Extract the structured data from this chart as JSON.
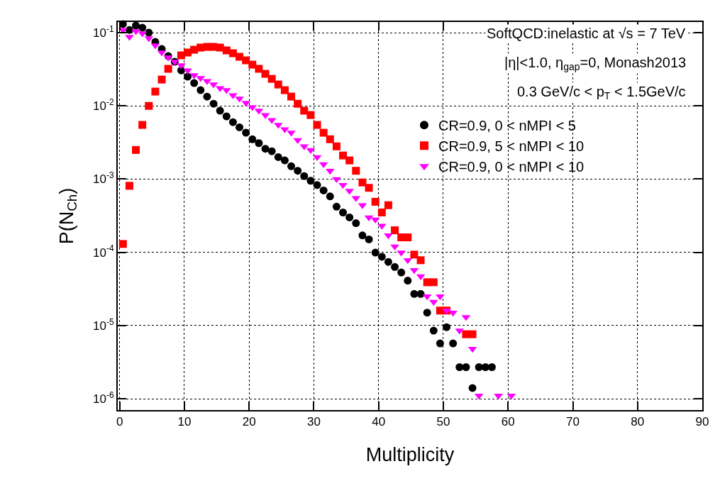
{
  "chart_data": {
    "type": "scatter",
    "xlabel": "Multiplicity",
    "ylabel": "P(N$_{Ch}$)",
    "annotations": [
      "SoftQCD:inelastic at √s = 7 TeV",
      "|η|<1.0, η$_{gap}$=0, Monash2013",
      "0.3 GeV/c < p$_{T}$ < 1.5GeV/c"
    ],
    "x": [
      0.5,
      1.5,
      2.5,
      3.5,
      4.5,
      5.5,
      6.5,
      7.5,
      8.5,
      9.5,
      10.5,
      11.5,
      12.5,
      13.5,
      14.5,
      15.5,
      16.5,
      17.5,
      18.5,
      19.5,
      20.5,
      21.5,
      22.5,
      23.5,
      24.5,
      25.5,
      26.5,
      27.5,
      28.5,
      29.5,
      30.5,
      31.5,
      32.5,
      33.5,
      34.5,
      35.5,
      36.5,
      37.5,
      38.5,
      39.5,
      40.5,
      41.5,
      42.5,
      43.5,
      44.5,
      45.5,
      46.5,
      47.5,
      48.5,
      49.5,
      50.5,
      51.5,
      52.5,
      53.5,
      54.5,
      55.5,
      56.5,
      57.5,
      58.5,
      59.5,
      60.5
    ],
    "series": [
      {
        "name": "CR=0.9, 0 < nMPI < 5",
        "color": "#000000",
        "marker": "circle",
        "values": [
          0.131,
          0.109,
          0.125,
          0.117,
          0.1,
          0.0748,
          0.0598,
          0.0479,
          0.0401,
          0.0306,
          0.0251,
          0.0205,
          0.0164,
          0.0134,
          0.0107,
          0.0086,
          0.0072,
          0.006,
          0.0051,
          0.0043,
          0.0035,
          0.0031,
          0.0026,
          0.0024,
          0.002,
          0.0018,
          0.0015,
          0.0013,
          0.0011,
          0.00095,
          0.00083,
          0.0007,
          0.00058,
          0.00042,
          0.00035,
          0.0003,
          0.00025,
          0.00017,
          0.00015,
          9.9e-05,
          8.7e-05,
          7.4e-05,
          6.3e-05,
          5.3e-05,
          4.1e-05,
          2.7e-05,
          2.7e-05,
          1.5e-05,
          8.5e-06,
          5.7e-06,
          9.5e-06,
          5.7e-06,
          2.7e-06,
          2.7e-06,
          1.4e-06,
          2.7e-06,
          2.7e-06,
          2.7e-06,
          null,
          null,
          null
        ]
      },
      {
        "name": "CR=0.9, 5 < nMPI < 10",
        "color": "#ff0000",
        "marker": "square",
        "values": [
          0.00013,
          0.00081,
          0.0025,
          0.0055,
          0.01,
          0.0157,
          0.0229,
          0.0321,
          null,
          0.049,
          0.0536,
          0.0585,
          0.0626,
          0.064,
          0.064,
          0.0626,
          0.0573,
          0.0524,
          0.0469,
          0.0419,
          0.0366,
          0.0321,
          0.0274,
          0.0234,
          0.0196,
          0.0164,
          0.0134,
          0.0107,
          0.0086,
          0.0075,
          0.0055,
          0.0043,
          0.0035,
          0.0028,
          0.0021,
          0.0018,
          0.0013,
          0.0009,
          0.00076,
          0.00049,
          0.00035,
          0.00044,
          0.0002,
          0.00016,
          0.00016,
          9.3e-05,
          7.8e-05,
          3.9e-05,
          3.9e-05,
          1.6e-05,
          1.6e-05,
          null,
          null,
          7.6e-06,
          7.6e-06,
          null,
          null,
          null,
          null,
          null,
          null
        ]
      },
      {
        "name": "CR=0.9, 0 < nMPI < 10",
        "color": "#ff00ff",
        "marker": "triangle",
        "values": [
          0.109,
          0.0875,
          0.105,
          0.098,
          0.0837,
          0.067,
          0.0536,
          0.0458,
          0.0401,
          0.0358,
          0.0306,
          0.0262,
          0.024,
          0.0219,
          0.0196,
          0.0175,
          0.0164,
          0.014,
          0.0126,
          0.011,
          0.0096,
          0.0086,
          0.0075,
          0.0064,
          0.0055,
          0.0048,
          0.0043,
          0.0034,
          0.0028,
          0.0025,
          0.002,
          0.0016,
          0.0013,
          0.001,
          0.00083,
          0.00069,
          0.00055,
          0.00044,
          0.0003,
          0.00028,
          0.00023,
          0.00017,
          0.00012,
          9.9e-05,
          7.8e-05,
          5.7e-05,
          4.7e-05,
          2.5e-05,
          2.1e-05,
          2.5e-05,
          1.6e-05,
          1.5e-05,
          8.5e-06,
          1.3e-05,
          4.8e-06,
          1.1e-06,
          null,
          null,
          1.1e-06,
          null,
          1.1e-06
        ]
      }
    ],
    "log": "y",
    "xlim": [
      -0.3,
      90
    ],
    "xticks": [
      0,
      10,
      20,
      30,
      40,
      50,
      60,
      70,
      80,
      90
    ],
    "ylim": [
      7e-07,
      0.14
    ],
    "yticks": [
      {
        "value": 1e-06,
        "label": "10$^{-6}$"
      },
      {
        "value": 1e-05,
        "label": "10$^{-5}$"
      },
      {
        "value": 0.0001,
        "label": "10$^{-4}$"
      },
      {
        "value": 0.001,
        "label": "10$^{-3}$"
      },
      {
        "value": 0.01,
        "label": "10$^{-2}$"
      },
      {
        "value": 0.1,
        "label": "10$^{-1}$"
      }
    ],
    "grid": true,
    "legend": "top right"
  }
}
